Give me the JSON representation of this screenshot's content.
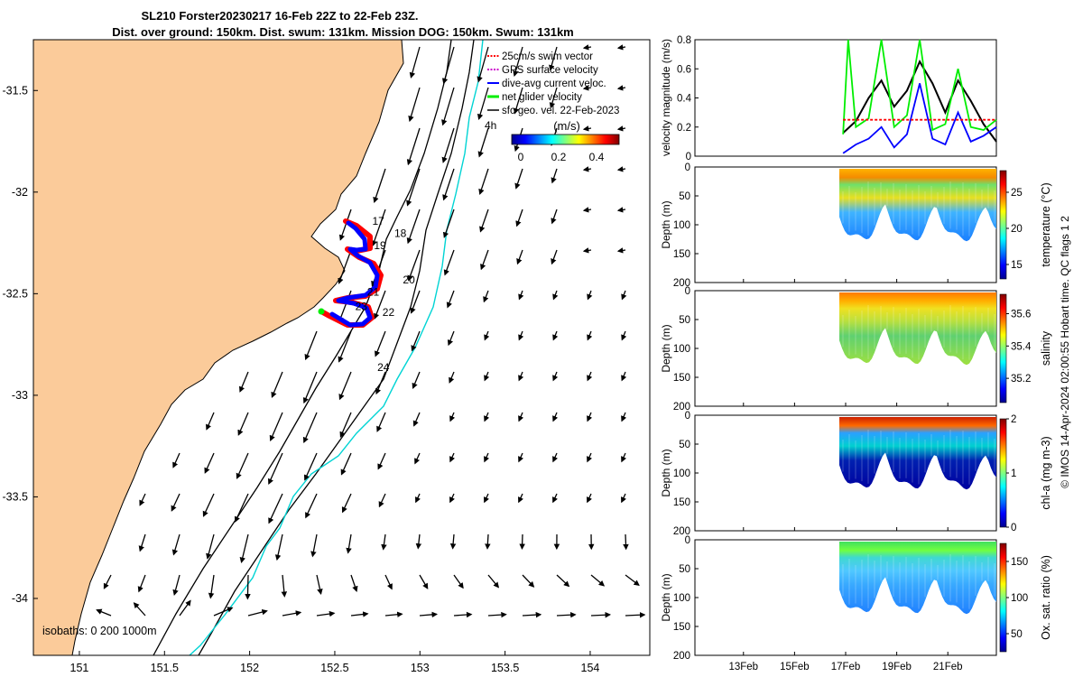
{
  "header": {
    "title_line1": "SL210 Forster20230217 16-Feb 22Z to 22-Feb 23Z.",
    "title_line2": "Dist. over ground: 150km. Dist. swum: 131km. Mission DOG: 150km. Swum: 131km"
  },
  "map": {
    "x_ticks": [
      "151",
      "151.5",
      "152",
      "152.5",
      "153",
      "153.5",
      "154"
    ],
    "y_ticks": [
      "-31.5",
      "-32",
      "-32.5",
      "-33",
      "-33.5",
      "-34"
    ],
    "x_range": [
      150.73,
      154.35
    ],
    "y_range": [
      -34.28,
      -31.25
    ],
    "legend": [
      {
        "label": "25cm/s swim vector",
        "color": "#ff0000"
      },
      {
        "label": "GPS surface velocity",
        "color": "#cc00cc"
      },
      {
        "label": "dive-avg current veloc.",
        "color": "#0000ff"
      },
      {
        "label": "net glider velocity",
        "color": "#00ee00"
      },
      {
        "label": "sfc geo. vel. 22-Feb-2023",
        "color": "#000000"
      }
    ],
    "colorbar": {
      "label": "(m/s)",
      "ticks": [
        "0",
        "0.2",
        "0.4"
      ]
    },
    "isobath_label": "isobaths: 0   200  1000m",
    "track_labels": [
      {
        "text": "17",
        "lon": 152.72,
        "lat": -32.16
      },
      {
        "text": "18",
        "lon": 152.85,
        "lat": -32.22
      },
      {
        "text": "19",
        "lon": 152.73,
        "lat": -32.28
      },
      {
        "text": "20",
        "lon": 152.9,
        "lat": -32.45
      },
      {
        "text": "21",
        "lon": 152.69,
        "lat": -32.51
      },
      {
        "text": "22",
        "lon": 152.78,
        "lat": -32.61
      },
      {
        "text": "23",
        "lon": 152.62,
        "lat": -32.58
      },
      {
        "text": "24",
        "lon": 152.75,
        "lat": -32.88
      },
      {
        "text": "4h",
        "lon": 153.38,
        "lat": -31.69
      }
    ],
    "colors": {
      "land": "#fbcb9a",
      "track_red": "#ff0000",
      "track_blue": "#0000ff",
      "isobath_1000": "#00d4d4"
    }
  },
  "side": {
    "x_ticks": [
      "13Feb",
      "15Feb",
      "17Feb",
      "19Feb",
      "21Feb"
    ],
    "right_note": "© IMOS 14-Apr-2024 02:00:55 Hobart time. QC flags 1  2",
    "panels": [
      {
        "id": "temperature",
        "ylabel": "Depth (m)",
        "y_ticks": [
          "0",
          "50",
          "100",
          "150",
          "200"
        ],
        "cbar_label": "temperature (°C)",
        "cbar_ticks": [
          "15",
          "20",
          "25"
        ],
        "cbar_range": [
          13,
          28
        ]
      },
      {
        "id": "salinity",
        "ylabel": "Depth (m)",
        "y_ticks": [
          "0",
          "50",
          "100",
          "150",
          "200"
        ],
        "cbar_label": "salinity",
        "cbar_ticks": [
          "35.2",
          "35.4",
          "35.6"
        ],
        "cbar_range": [
          35.05,
          35.72
        ]
      },
      {
        "id": "chla",
        "ylabel": "Depth (m)",
        "y_ticks": [
          "0",
          "50",
          "100",
          "150",
          "200"
        ],
        "cbar_label": "chl-a (mg m-3)",
        "cbar_ticks": [
          "0",
          "1",
          "2"
        ],
        "cbar_range": [
          0,
          2
        ]
      },
      {
        "id": "oxygen",
        "ylabel": "Depth (m)",
        "y_ticks": [
          "0",
          "50",
          "100",
          "150",
          "200"
        ],
        "cbar_label": "Ox. sat. ratio (%)",
        "cbar_ticks": [
          "50",
          "100",
          "150"
        ],
        "cbar_range": [
          25,
          175
        ]
      }
    ]
  },
  "chart_data": [
    {
      "type": "line",
      "title": "",
      "ylabel": "velocity magnitude (m/s)",
      "xlabel": "",
      "ylim": [
        0,
        0.8
      ],
      "y_ticks": [
        "0",
        "0.2",
        "0.4",
        "0.6",
        "0.8"
      ],
      "x_range_days": [
        11.1,
        22.9
      ],
      "series": [
        {
          "color": "#000000",
          "x": [
            16.9,
            17.4,
            17.9,
            18.4,
            18.9,
            19.4,
            19.9,
            20.4,
            20.9,
            21.4,
            21.9,
            22.4,
            22.9
          ],
          "values": [
            0.16,
            0.24,
            0.4,
            0.52,
            0.34,
            0.45,
            0.65,
            0.5,
            0.3,
            0.52,
            0.38,
            0.22,
            0.1
          ]
        },
        {
          "color": "#0000ff",
          "x": [
            16.9,
            17.4,
            17.9,
            18.4,
            18.9,
            19.4,
            19.9,
            20.4,
            20.9,
            21.4,
            21.9,
            22.4,
            22.9
          ],
          "values": [
            0.02,
            0.08,
            0.12,
            0.2,
            0.06,
            0.15,
            0.5,
            0.12,
            0.08,
            0.3,
            0.1,
            0.14,
            0.2
          ]
        },
        {
          "color": "#00ee00",
          "x": [
            16.9,
            17.1,
            17.4,
            17.9,
            18.4,
            18.9,
            19.4,
            19.9,
            20.4,
            20.9,
            21.4,
            21.9,
            22.4,
            22.9
          ],
          "values": [
            0.15,
            0.8,
            0.2,
            0.26,
            0.8,
            0.2,
            0.28,
            0.8,
            0.18,
            0.22,
            0.6,
            0.2,
            0.18,
            0.25
          ]
        },
        {
          "color": "#ff0000",
          "x": [
            16.9,
            22.9
          ],
          "values": [
            0.25,
            0.25
          ]
        }
      ]
    }
  ]
}
